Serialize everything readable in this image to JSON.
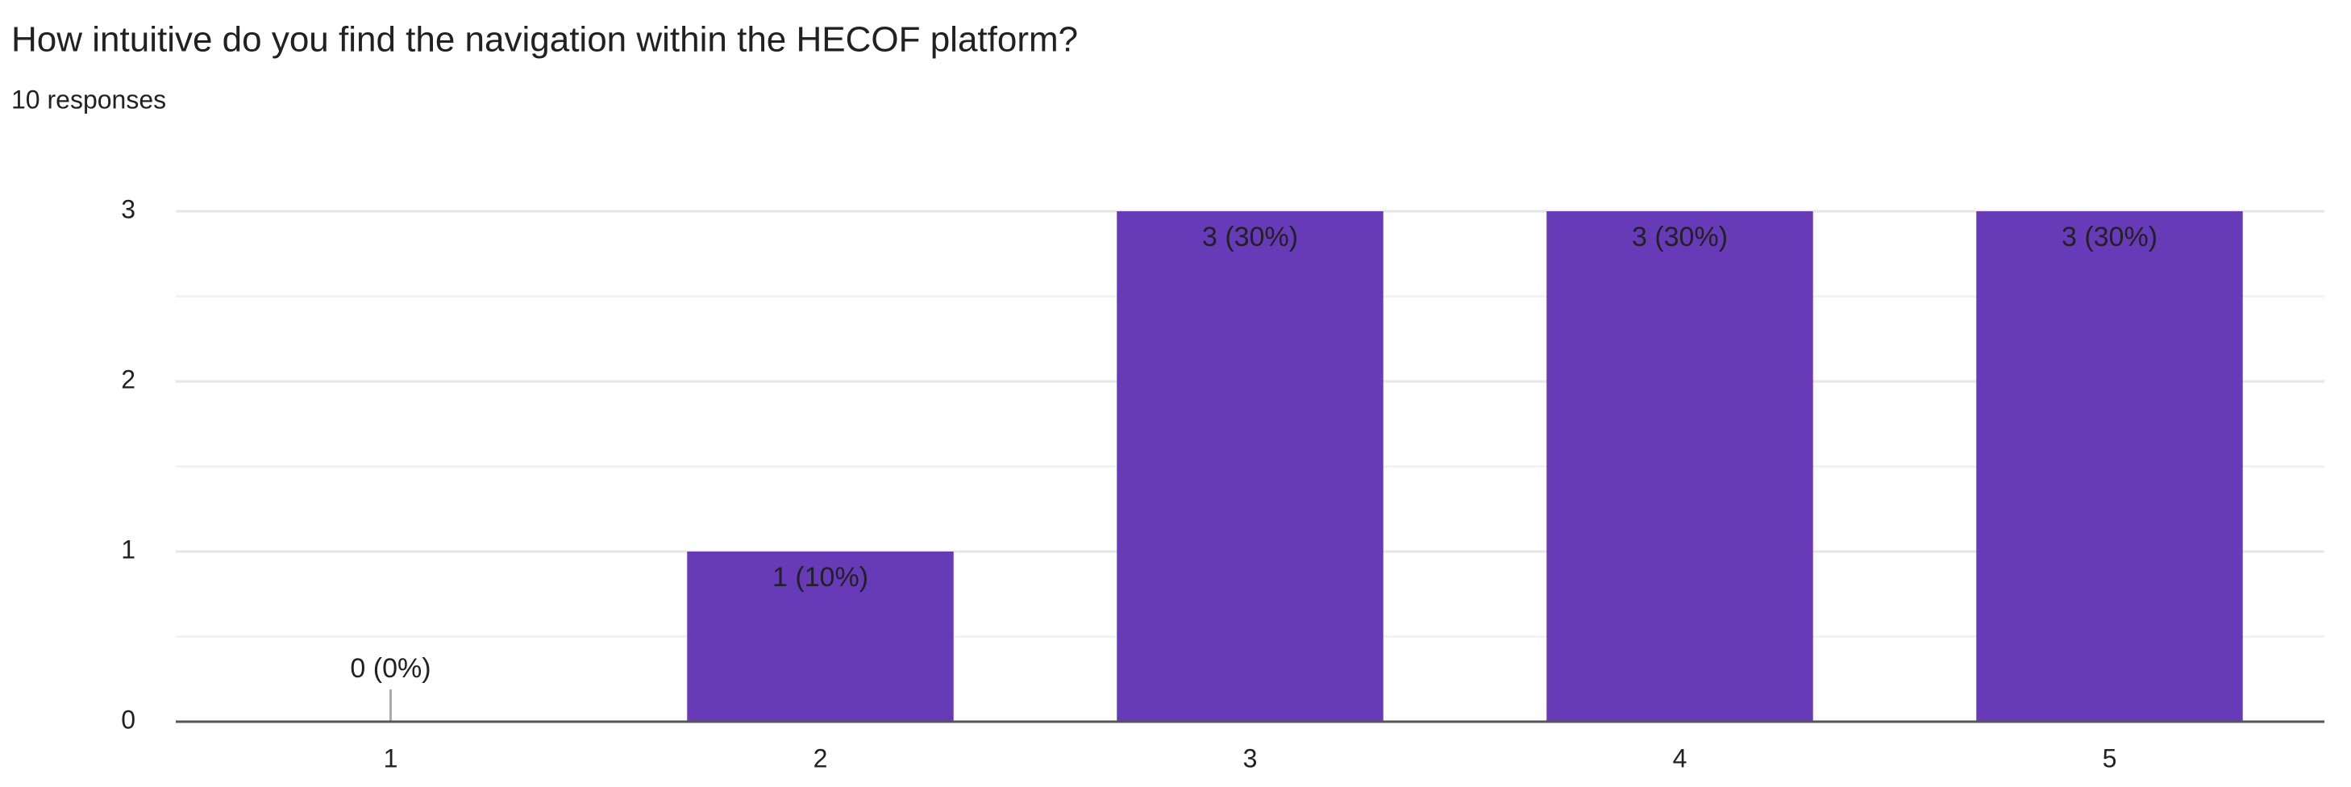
{
  "chart_data": {
    "type": "bar",
    "title": "How intuitive do you find the navigation within the HECOF platform?",
    "subtitle": "10 responses",
    "categories": [
      "1",
      "2",
      "3",
      "4",
      "5"
    ],
    "values": [
      0,
      1,
      3,
      3,
      3
    ],
    "value_labels": [
      "0 (0%)",
      "1 (10%)",
      "3 (30%)",
      "3 (30%)",
      "3 (30%)"
    ],
    "color": "#673ab7",
    "ylim": [
      0,
      3
    ],
    "yticks": [
      0,
      1,
      2,
      3
    ],
    "minor_yticks": [
      0.5,
      1.5,
      2.5
    ],
    "grid": true
  }
}
